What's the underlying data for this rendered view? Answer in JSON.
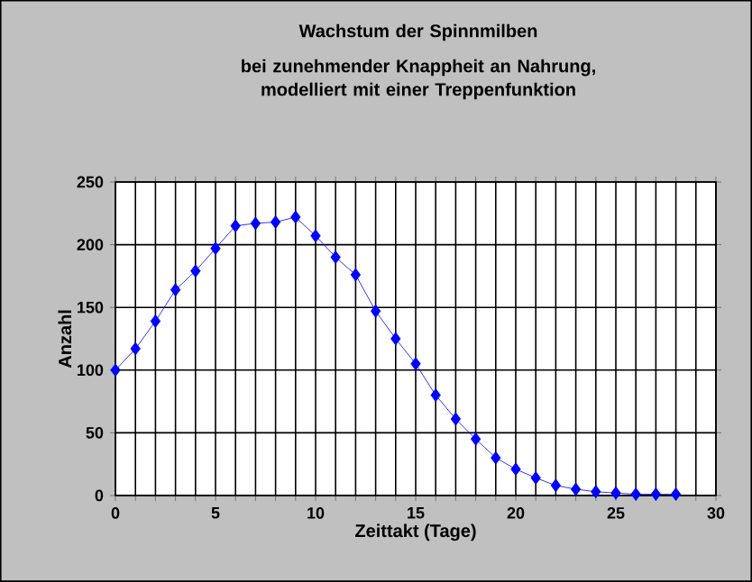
{
  "chart_data": {
    "type": "line",
    "title": "Wachstum der Spinnmilben",
    "subtitle": "bei zunehmender Knappheit an Nahrung, modelliert mit einer Treppenfunktion",
    "xlabel": "Zeittakt (Tage)",
    "ylabel": "Anzahl",
    "x": [
      0,
      1,
      2,
      3,
      4,
      5,
      6,
      7,
      8,
      9,
      10,
      11,
      12,
      13,
      14,
      15,
      16,
      17,
      18,
      19,
      20,
      21,
      22,
      23,
      24,
      25,
      26,
      27,
      28
    ],
    "values": [
      100,
      117,
      139,
      164,
      179,
      197,
      215,
      217,
      218,
      222,
      207,
      190,
      176,
      147,
      125,
      105,
      80,
      61,
      45,
      30,
      21,
      14,
      8,
      5,
      3,
      2,
      1,
      1,
      1
    ],
    "color": "#0000ff",
    "marker": "diamond",
    "line_style": "solid",
    "grid": true,
    "xlim": [
      0,
      30
    ],
    "ylim": [
      0,
      250
    ],
    "xticks": [
      0,
      {
        "value": 1,
        "label": null
      },
      {
        "value": 2,
        "label": null
      },
      {
        "value": 3,
        "label": null
      },
      {
        "value": 4,
        "label": null
      },
      5,
      {
        "value": 6,
        "label": null
      },
      {
        "value": 7,
        "label": null
      },
      {
        "value": 8,
        "label": null
      },
      {
        "value": 9,
        "label": null
      },
      10,
      {
        "value": 11,
        "label": null
      },
      {
        "value": 12,
        "label": null
      },
      {
        "value": 13,
        "label": null
      },
      {
        "value": 14,
        "label": null
      },
      15,
      {
        "value": 16,
        "label": null
      },
      {
        "value": 17,
        "label": null
      },
      {
        "value": 18,
        "label": null
      },
      {
        "value": 19,
        "label": null
      },
      20,
      {
        "value": 21,
        "label": null
      },
      {
        "value": 22,
        "label": null
      },
      {
        "value": 23,
        "label": null
      },
      {
        "value": 24,
        "label": null
      },
      25,
      {
        "value": 26,
        "label": null
      },
      {
        "value": 27,
        "label": null
      },
      {
        "value": 28,
        "label": null
      },
      {
        "value": 29,
        "label": null
      },
      30
    ],
    "yticks": [
      0,
      50,
      100,
      150,
      200,
      250
    ]
  }
}
